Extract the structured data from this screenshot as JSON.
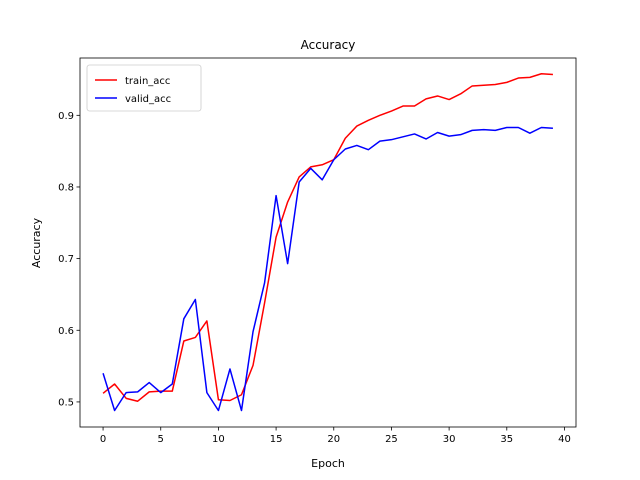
{
  "chart_data": {
    "type": "line",
    "title": "Accuracy",
    "xlabel": "Epoch",
    "ylabel": "Accuracy",
    "xlim": [
      -2,
      41
    ],
    "ylim": [
      0.465,
      0.98
    ],
    "xticks": [
      0,
      5,
      10,
      15,
      20,
      25,
      30,
      35,
      40
    ],
    "yticks": [
      0.5,
      0.6,
      0.7,
      0.8,
      0.9
    ],
    "ytick_labels": [
      "0.5",
      "0.6",
      "0.7",
      "0.8",
      "0.9"
    ],
    "grid": false,
    "legend": "top-left",
    "x": [
      0,
      1,
      2,
      3,
      4,
      5,
      6,
      7,
      8,
      9,
      10,
      11,
      12,
      13,
      14,
      15,
      16,
      17,
      18,
      19,
      20,
      21,
      22,
      23,
      24,
      25,
      26,
      27,
      28,
      29,
      30,
      31,
      32,
      33,
      34,
      35,
      36,
      37,
      38,
      39
    ],
    "series": [
      {
        "name": "train_acc",
        "color": "#ff0000",
        "values": [
          0.512,
          0.525,
          0.505,
          0.501,
          0.514,
          0.515,
          0.515,
          0.585,
          0.59,
          0.613,
          0.503,
          0.502,
          0.51,
          0.551,
          0.638,
          0.73,
          0.779,
          0.814,
          0.828,
          0.831,
          0.838,
          0.868,
          0.885,
          0.893,
          0.9,
          0.906,
          0.913,
          0.913,
          0.923,
          0.927,
          0.922,
          0.93,
          0.941,
          0.942,
          0.943,
          0.946,
          0.952,
          0.953,
          0.958,
          0.957
        ]
      },
      {
        "name": "valid_acc",
        "color": "#0000ff",
        "values": [
          0.54,
          0.488,
          0.513,
          0.514,
          0.527,
          0.513,
          0.525,
          0.616,
          0.643,
          0.513,
          0.488,
          0.546,
          0.488,
          0.598,
          0.666,
          0.788,
          0.693,
          0.807,
          0.826,
          0.81,
          0.838,
          0.853,
          0.858,
          0.852,
          0.864,
          0.866,
          0.87,
          0.874,
          0.867,
          0.876,
          0.871,
          0.873,
          0.879,
          0.88,
          0.879,
          0.883,
          0.883,
          0.875,
          0.883,
          0.882
        ]
      }
    ]
  }
}
